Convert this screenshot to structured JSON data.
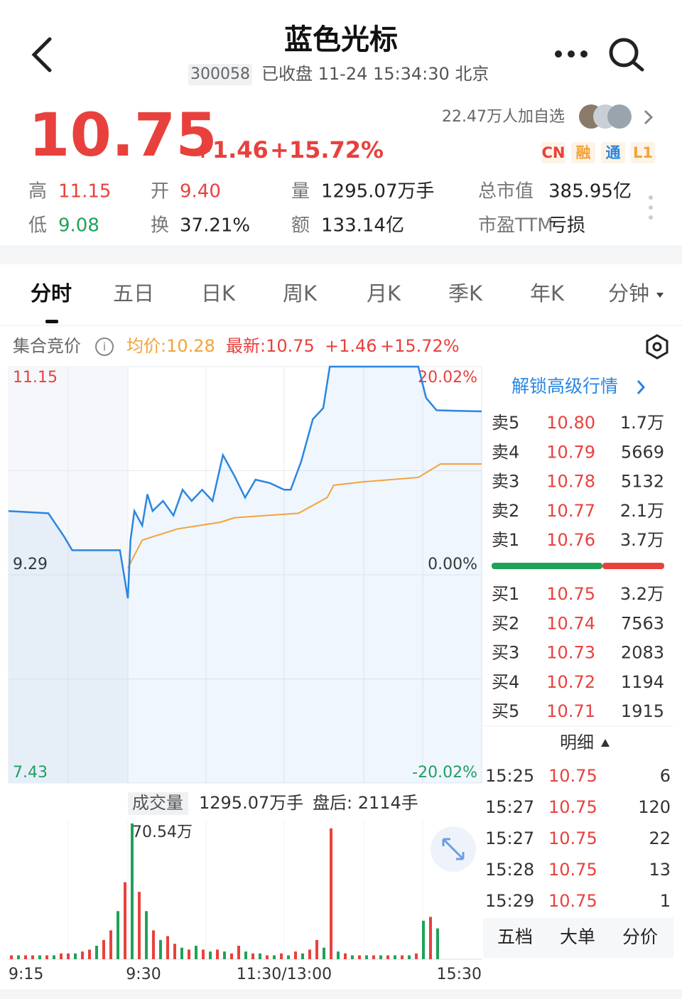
{
  "header": {
    "title": "蓝色光标",
    "code": "300058",
    "status": "已收盘 11-24 15:34:30 北京"
  },
  "quote": {
    "price": "10.75",
    "change": "+1.46",
    "change_pct": "+15.72%",
    "followers": "22.47万人加自选",
    "tags": [
      "CN",
      "融",
      "通",
      "L1"
    ]
  },
  "stats": [
    {
      "label": "高",
      "value": "11.15",
      "color": "#e8413d"
    },
    {
      "label": "开",
      "value": "9.40",
      "color": "#e8413d"
    },
    {
      "label": "量",
      "value": "1295.07万手",
      "color": "#222222"
    },
    {
      "label": "总市值",
      "value": "385.95亿",
      "color": "#222222"
    },
    {
      "label": "低",
      "value": "9.08",
      "color": "#1fa25a"
    },
    {
      "label": "换",
      "value": "37.21%",
      "color": "#222222"
    },
    {
      "label": "额",
      "value": "133.14亿",
      "color": "#222222"
    },
    {
      "label": "市盈TTM",
      "value": "亏损",
      "color": "#222222"
    }
  ],
  "tabs": [
    "分时",
    "五日",
    "日K",
    "周K",
    "月K",
    "季K",
    "年K",
    "分钟"
  ],
  "info": {
    "auction": "集合竞价",
    "avg": "均价:10.28",
    "latest": "最新:10.75",
    "change": "+1.46",
    "change_pct": "+15.72%"
  },
  "chart": {
    "xlim": [
      0,
      285
    ],
    "ylim": [
      7.43,
      11.15
    ],
    "yticks": [
      {
        "value": 11.15,
        "label": "11.15",
        "pct": "20.02%"
      },
      {
        "value": 9.29,
        "label": "9.29",
        "pct": "0.00%"
      },
      {
        "value": 7.43,
        "label": "7.43",
        "pct": "-20.02%"
      }
    ],
    "xticks": [
      {
        "value": 0,
        "label": "9:15"
      },
      {
        "value": 15,
        "label": "9:30"
      },
      {
        "value": 135,
        "label": "11:30/13:00"
      },
      {
        "value": 285,
        "label": "15:30"
      }
    ],
    "price_color": "#2b86e0",
    "avg_color": "#f2a33a",
    "x": [
      0,
      5,
      7,
      8,
      14,
      15,
      17,
      20,
      26,
      30,
      34,
      42,
      50,
      57,
      64,
      72,
      80,
      88,
      97,
      105,
      113,
      124,
      135,
      140,
      148,
      157,
      165,
      170,
      238,
      244,
      252,
      285
    ],
    "price": [
      9.86,
      9.84,
      9.63,
      9.51,
      9.51,
      9.08,
      9.6,
      9.86,
      9.73,
      10.01,
      9.86,
      9.95,
      9.82,
      10.05,
      9.95,
      10.05,
      9.95,
      10.36,
      10.17,
      9.98,
      10.14,
      10.11,
      10.05,
      10.05,
      10.3,
      10.68,
      10.78,
      11.15,
      11.15,
      10.87,
      10.76,
      10.75
    ],
    "avg_x": [
      15,
      26,
      53,
      86,
      97,
      146,
      168,
      173,
      195,
      238,
      255,
      285
    ],
    "avg": [
      9.35,
      9.6,
      9.7,
      9.76,
      9.8,
      9.84,
      9.98,
      10.09,
      10.12,
      10.16,
      10.28,
      10.28
    ]
  },
  "volume": {
    "title": "成交量",
    "total": "1295.07万手",
    "after": "盘后: 2114手",
    "ylim": [
      0,
      72
    ],
    "values": [
      2,
      2,
      2,
      2,
      2,
      2,
      2,
      3,
      3,
      3,
      4,
      5,
      7,
      10,
      15,
      25,
      40,
      70.54,
      35,
      25,
      15,
      10,
      12,
      8,
      6,
      5,
      7,
      5,
      4,
      5,
      4,
      3,
      7,
      4,
      3,
      3,
      2,
      2,
      3,
      2,
      4,
      3,
      5,
      10,
      6,
      68,
      4,
      3,
      2,
      2,
      2,
      2,
      2,
      2,
      2,
      2,
      2,
      3,
      20,
      22,
      16
    ],
    "value_labels": [
      null,
      null,
      null,
      null,
      null,
      null,
      null,
      null,
      null,
      null,
      null,
      null,
      null,
      null,
      null,
      null,
      null,
      "70.54万",
      null,
      null,
      null,
      null,
      null,
      null,
      null,
      null,
      null,
      null,
      null,
      null,
      null,
      null,
      null,
      null,
      null,
      null,
      null,
      null,
      null,
      null,
      null,
      null,
      null,
      null,
      null,
      null,
      null,
      null,
      null,
      null,
      null,
      null,
      null,
      null,
      null,
      null,
      null,
      null,
      null,
      null,
      null
    ],
    "colors": [
      "#e8413d",
      "#1fa25a",
      "#e8413d",
      "#e8413d",
      "#1fa25a",
      "#e8413d",
      "#1fa25a",
      "#e8413d",
      "#e8413d",
      "#1fa25a",
      "#e8413d",
      "#e8413d",
      "#1fa25a",
      "#e8413d",
      "#e8413d",
      "#1fa25a",
      "#e8413d",
      "#1fa25a",
      "#e8413d",
      "#1fa25a",
      "#e8413d",
      "#1fa25a",
      "#e8413d",
      "#e8413d",
      "#1fa25a",
      "#e8413d",
      "#1fa25a",
      "#e8413d",
      "#1fa25a",
      "#e8413d",
      "#1fa25a",
      "#e8413d",
      "#e8413d",
      "#1fa25a",
      "#e8413d",
      "#1fa25a",
      "#e8413d",
      "#1fa25a",
      "#e8413d",
      "#1fa25a",
      "#e8413d",
      "#1fa25a",
      "#e8413d",
      "#e8413d",
      "#1fa25a",
      "#e8413d",
      "#1fa25a",
      "#e8413d",
      "#1fa25a",
      "#e8413d",
      "#1fa25a",
      "#e8413d",
      "#1fa25a",
      "#e8413d",
      "#1fa25a",
      "#e8413d",
      "#1fa25a",
      "#e8413d",
      "#1fa25a",
      "#e8413d",
      "#1fa25a"
    ]
  },
  "book": {
    "unlock": "解锁高级行情",
    "asks": [
      [
        "卖5",
        "10.80",
        "1.7万"
      ],
      [
        "卖4",
        "10.79",
        "5669"
      ],
      [
        "卖3",
        "10.78",
        "5132"
      ],
      [
        "卖2",
        "10.77",
        "2.1万"
      ],
      [
        "卖1",
        "10.76",
        "3.7万"
      ]
    ],
    "bids": [
      [
        "买1",
        "10.75",
        "3.2万"
      ],
      [
        "买2",
        "10.74",
        "7563"
      ],
      [
        "买3",
        "10.73",
        "2083"
      ],
      [
        "买4",
        "10.72",
        "1194"
      ],
      [
        "买5",
        "10.71",
        "1915"
      ]
    ]
  },
  "detail": {
    "title": "明细",
    "rows": [
      [
        "15:25",
        "10.75",
        "6"
      ],
      [
        "15:27",
        "10.75",
        "120"
      ],
      [
        "15:27",
        "10.75",
        "22"
      ],
      [
        "15:28",
        "10.75",
        "13"
      ],
      [
        "15:29",
        "10.75",
        "1"
      ]
    ]
  },
  "bottom_tabs": [
    "五档",
    "大单",
    "分价"
  ]
}
